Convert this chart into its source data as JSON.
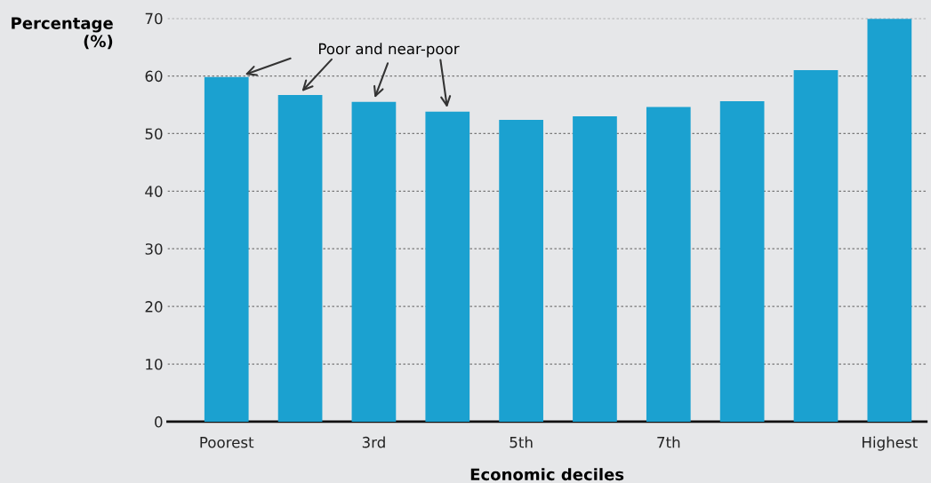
{
  "chart_data": {
    "type": "bar",
    "ylabel": "Percentage\n(%)",
    "xlabel": "Economic deciles",
    "categories": [
      "Poorest",
      null,
      "3rd",
      null,
      "5th",
      null,
      "7th",
      null,
      null,
      "Highest"
    ],
    "values": [
      59.8,
      56.7,
      55.5,
      53.8,
      52.4,
      53.0,
      54.6,
      55.6,
      61.0,
      69.9
    ],
    "color": "#1ba1d0",
    "ylim": [
      0,
      70
    ],
    "yticks": [
      0,
      10,
      20,
      30,
      40,
      50,
      60,
      70
    ],
    "grid": "y",
    "annotations": [
      "Poor and near-poor"
    ]
  }
}
